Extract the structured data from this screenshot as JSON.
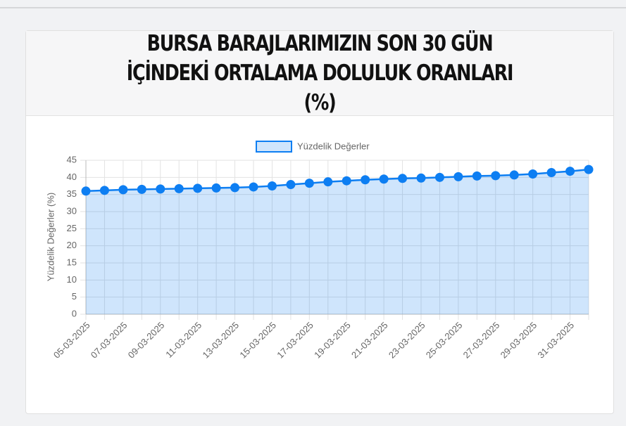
{
  "chart_data": {
    "type": "line",
    "title": "BURSA BARAJLARIMIZIN SON 30 GÜN İÇİNDEKİ ORTALAMA DOLULUK ORANLARI (%)",
    "y_label": "Yüzdelik Değerler (%)",
    "categories": [
      "05-03-2025",
      null,
      "07-03-2025",
      null,
      "09-03-2025",
      null,
      "11-03-2025",
      null,
      "13-03-2025",
      null,
      "15-03-2025",
      null,
      "17-03-2025",
      null,
      "19-03-2025",
      null,
      "21-03-2025",
      null,
      "23-03-2025",
      null,
      "25-03-2025",
      null,
      "27-03-2025",
      null,
      "29-03-2025",
      null,
      "31-03-2025",
      null
    ],
    "series": [
      {
        "name": "Yüzdelik Değerler",
        "color": "#0d7ef2",
        "values": [
          36.0,
          36.2,
          36.4,
          36.5,
          36.6,
          36.7,
          36.8,
          36.9,
          37.0,
          37.2,
          37.5,
          37.9,
          38.3,
          38.7,
          39.0,
          39.3,
          39.5,
          39.7,
          39.8,
          40.0,
          40.2,
          40.4,
          40.5,
          40.7,
          41.0,
          41.4,
          41.8,
          42.3
        ]
      }
    ],
    "ylim": [
      0,
      45
    ],
    "yticks": [
      0,
      5,
      10,
      15,
      20,
      25,
      30,
      35,
      40,
      45
    ],
    "grid": true,
    "legend": "top"
  }
}
